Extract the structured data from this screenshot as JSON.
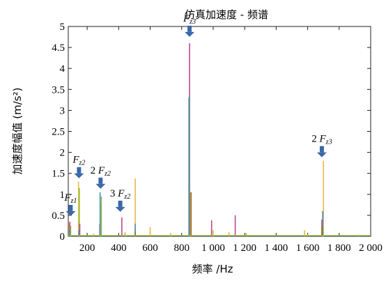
{
  "chart_data": {
    "type": "line",
    "title": "仿真加速度 - 频谱",
    "xlabel": "频率 /Hz",
    "ylabel": "加速度幅值 (m/s²)",
    "xlim": [
      80,
      2000
    ],
    "ylim": [
      0,
      5
    ],
    "grid": false,
    "x_ticks": [
      200,
      400,
      600,
      800,
      1000,
      1200,
      1400,
      1600,
      1800,
      2000
    ],
    "x_tick_labels": [
      "200",
      "400",
      "600",
      "800",
      "1 000",
      "1 200",
      "1 400",
      "1 600",
      "1 800",
      "2 000"
    ],
    "y_ticks": [
      0,
      0.5,
      1,
      1.5,
      2,
      2.5,
      3,
      3.5,
      4,
      4.5,
      5
    ],
    "y_tick_labels": [
      "0",
      "0.5",
      "1",
      "1.5",
      "2",
      "2.5",
      "3",
      "3.5",
      "4",
      "4.5",
      "5"
    ],
    "series": [
      {
        "color": "#e8b84a",
        "peaks": [
          {
            "x": 85,
            "y": 0.3
          },
          {
            "x": 145,
            "y": 1.3
          },
          {
            "x": 240,
            "y": 0.06
          },
          {
            "x": 285,
            "y": 0.75
          },
          {
            "x": 440,
            "y": 0.1
          },
          {
            "x": 505,
            "y": 1.38
          },
          {
            "x": 600,
            "y": 0.22
          },
          {
            "x": 730,
            "y": 0.08
          },
          {
            "x": 855,
            "y": 1.05
          },
          {
            "x": 1000,
            "y": 0.15
          },
          {
            "x": 1100,
            "y": 0.1
          },
          {
            "x": 1210,
            "y": 0.08
          },
          {
            "x": 1580,
            "y": 0.15
          },
          {
            "x": 1700,
            "y": 1.8
          },
          {
            "x": 1920,
            "y": 0.04
          }
        ]
      },
      {
        "color": "#8fbf3a",
        "peaks": [
          {
            "x": 95,
            "y": 0.25
          },
          {
            "x": 150,
            "y": 1.15
          },
          {
            "x": 290,
            "y": 0.95
          },
          {
            "x": 440,
            "y": 0.05
          },
          {
            "x": 505,
            "y": 0.2
          },
          {
            "x": 845,
            "y": 3.3
          },
          {
            "x": 990,
            "y": 0.2
          },
          {
            "x": 1210,
            "y": 0.06
          },
          {
            "x": 1600,
            "y": 0.05
          }
        ]
      },
      {
        "color": "#c0478a",
        "peaks": [
          {
            "x": 90,
            "y": 0.35
          },
          {
            "x": 153,
            "y": 0.3
          },
          {
            "x": 280,
            "y": 0.3
          },
          {
            "x": 420,
            "y": 0.45
          },
          {
            "x": 850,
            "y": 4.6
          },
          {
            "x": 990,
            "y": 0.38
          },
          {
            "x": 1140,
            "y": 0.5
          },
          {
            "x": 1690,
            "y": 0.4
          }
        ]
      },
      {
        "color": "#4a90c8",
        "peaks": [
          {
            "x": 88,
            "y": 0.15
          },
          {
            "x": 147,
            "y": 0.15
          },
          {
            "x": 282,
            "y": 1.05
          },
          {
            "x": 505,
            "y": 0.3
          },
          {
            "x": 848,
            "y": 3.35
          },
          {
            "x": 1695,
            "y": 0.6
          }
        ]
      },
      {
        "color": "#a06b2d",
        "peaks": [
          {
            "x": 860,
            "y": 1.05
          },
          {
            "x": 505,
            "y": 0.12
          },
          {
            "x": 1690,
            "y": 0.25
          }
        ]
      }
    ],
    "annotations": [
      {
        "prefix": "",
        "symbol": "F",
        "sub": "z1",
        "x": 95,
        "y": 0.45
      },
      {
        "prefix": "",
        "symbol": "F",
        "sub": "z2",
        "x": 148,
        "y": 1.35
      },
      {
        "prefix": "2",
        "symbol": "F",
        "sub": "z2",
        "x": 285,
        "y": 1.1
      },
      {
        "prefix": "3",
        "symbol": "F",
        "sub": "z2",
        "x": 410,
        "y": 0.55
      },
      {
        "prefix": "",
        "symbol": "F",
        "sub": "z3",
        "x": 850,
        "y": 4.72
      },
      {
        "prefix": "2",
        "symbol": "F",
        "sub": "z3",
        "x": 1690,
        "y": 1.85
      }
    ]
  }
}
